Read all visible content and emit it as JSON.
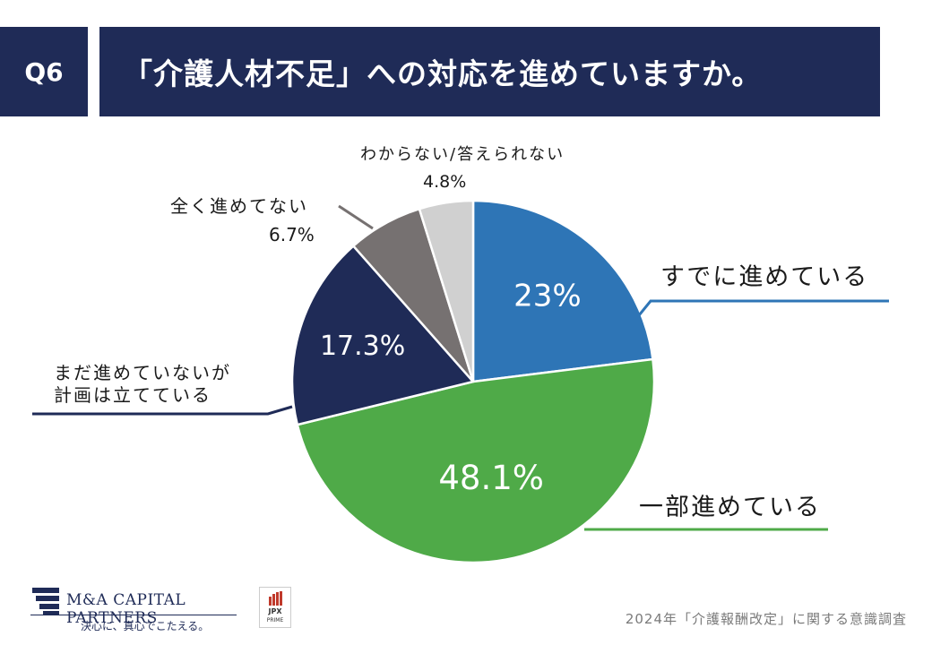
{
  "header": {
    "question_no": "Q6",
    "question": "「介護人材不足」への対応を進めていますか。"
  },
  "chart_data": {
    "type": "pie",
    "title": "「介護人材不足」への対応を進めていますか。",
    "start_angle_deg": 0,
    "direction": "clockwise",
    "slices": [
      {
        "label": "すでに進めている",
        "value": 23.0,
        "display": "23%",
        "color": "#2e75b6"
      },
      {
        "label": "一部進めている",
        "value": 48.1,
        "display": "48.1%",
        "color": "#4faa48"
      },
      {
        "label": "まだ進めていないが計画は立てている",
        "label_lines": [
          "まだ進めていないが",
          "計画は立てている"
        ],
        "value": 17.3,
        "display": "17.3%",
        "color": "#1f2b57"
      },
      {
        "label": "全く進めてない",
        "value": 6.7,
        "display": "6.7%",
        "color": "#767171"
      },
      {
        "label": "わからない/答えられない",
        "value": 4.8,
        "display": "4.8%",
        "color": "#d0d0d0"
      }
    ]
  },
  "footer": {
    "source": "2024年「介護報酬改定」に関する意識調査",
    "company_name": "M&A CAPITAL PARTNERS",
    "company_tagline": "決心に、真心でこたえる。",
    "jpx_line1": "JPX",
    "jpx_line2": "PRIME"
  }
}
